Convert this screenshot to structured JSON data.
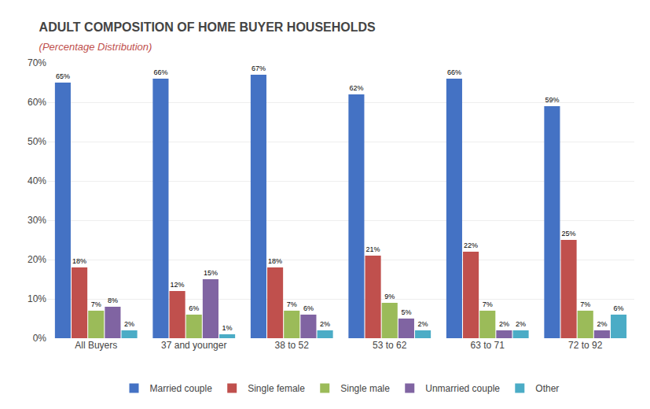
{
  "chart_data": {
    "type": "bar",
    "title": "ADULT COMPOSITION OF HOME BUYER HOUSEHOLDS",
    "subtitle": "(Percentage Distribution)",
    "categories": [
      "All Buyers",
      "37 and younger",
      "38 to 52",
      "53 to 62",
      "63 to 71",
      "72 to 92"
    ],
    "series": [
      {
        "name": "Married couple",
        "color": "#4472C4",
        "values": [
          65,
          66,
          67,
          62,
          66,
          59
        ],
        "value_labels": [
          "65%",
          "66%",
          "67%",
          "62%",
          "66%",
          "59%"
        ]
      },
      {
        "name": "Single female",
        "color": "#C0504D",
        "values": [
          18,
          12,
          18,
          21,
          22,
          25
        ],
        "value_labels": [
          "18%",
          "12%",
          "18%",
          "21%",
          "22%",
          "25%"
        ]
      },
      {
        "name": "Single male",
        "color": "#9BBB59",
        "values": [
          7,
          6,
          7,
          9,
          7,
          7
        ],
        "value_labels": [
          "7%",
          "6%",
          "7%",
          "9%",
          "7%",
          "7%"
        ]
      },
      {
        "name": "Unmarried couple",
        "color": "#8064A2",
        "values": [
          8,
          15,
          6,
          5,
          2,
          2
        ],
        "value_labels": [
          "8%",
          "15%",
          "6%",
          "5%",
          "2%",
          "2%"
        ]
      },
      {
        "name": "Other",
        "color": "#4BACC6",
        "values": [
          2,
          1,
          2,
          2,
          2,
          6
        ],
        "value_labels": [
          "2%",
          "1%",
          "2%",
          "2%",
          "2%",
          "6%"
        ]
      }
    ],
    "ylim": [
      0,
      70
    ],
    "yticks": [
      {
        "value": 0,
        "label": "0%"
      },
      {
        "value": 10,
        "label": "10%"
      },
      {
        "value": 20,
        "label": "20%"
      },
      {
        "value": 30,
        "label": "30%"
      },
      {
        "value": 40,
        "label": "40%"
      },
      {
        "value": 50,
        "label": "50%"
      },
      {
        "value": 60,
        "label": "60%"
      },
      {
        "value": 70,
        "label": "70%"
      }
    ],
    "grid": true,
    "legend": "bottom",
    "data_labels": true
  }
}
